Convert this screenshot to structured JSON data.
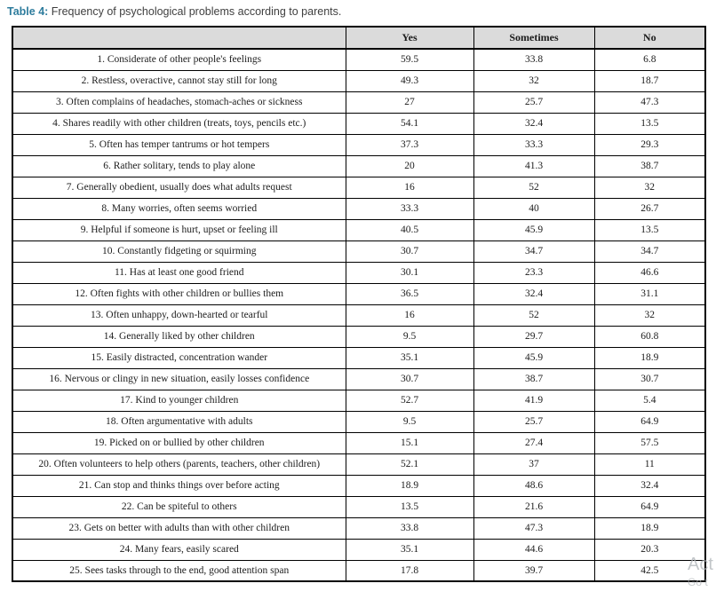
{
  "caption": {
    "label": "Table 4:",
    "text": " Frequency of psychological problems according to parents."
  },
  "table": {
    "headers": [
      "",
      "Yes",
      "Sometimes",
      "No"
    ],
    "rows": [
      {
        "problem": "1. Considerate of other people's feelings",
        "yes": "59.5",
        "sometimes": "33.8",
        "no": "6.8"
      },
      {
        "problem": "2. Restless, overactive, cannot stay still for long",
        "yes": "49.3",
        "sometimes": "32",
        "no": "18.7"
      },
      {
        "problem": "3. Often complains of headaches, stomach-aches or sickness",
        "yes": "27",
        "sometimes": "25.7",
        "no": "47.3"
      },
      {
        "problem": "4. Shares readily with other children (treats, toys, pencils etc.)",
        "yes": "54.1",
        "sometimes": "32.4",
        "no": "13.5"
      },
      {
        "problem": "5. Often has temper tantrums or hot tempers",
        "yes": "37.3",
        "sometimes": "33.3",
        "no": "29.3"
      },
      {
        "problem": "6. Rather solitary, tends to play alone",
        "yes": "20",
        "sometimes": "41.3",
        "no": "38.7"
      },
      {
        "problem": "7. Generally obedient, usually does what adults request",
        "yes": "16",
        "sometimes": "52",
        "no": "32"
      },
      {
        "problem": "8. Many worries, often seems worried",
        "yes": "33.3",
        "sometimes": "40",
        "no": "26.7"
      },
      {
        "problem": "9. Helpful if someone is hurt, upset or feeling ill",
        "yes": "40.5",
        "sometimes": "45.9",
        "no": "13.5"
      },
      {
        "problem": "10. Constantly fidgeting or squirming",
        "yes": "30.7",
        "sometimes": "34.7",
        "no": "34.7"
      },
      {
        "problem": "11. Has at least one good friend",
        "yes": "30.1",
        "sometimes": "23.3",
        "no": "46.6"
      },
      {
        "problem": "12. Often fights with other children or bullies them",
        "yes": "36.5",
        "sometimes": "32.4",
        "no": "31.1"
      },
      {
        "problem": "13. Often unhappy, down-hearted or tearful",
        "yes": "16",
        "sometimes": "52",
        "no": "32"
      },
      {
        "problem": "14. Generally liked by other children",
        "yes": "9.5",
        "sometimes": "29.7",
        "no": "60.8"
      },
      {
        "problem": "15. Easily distracted, concentration wander",
        "yes": "35.1",
        "sometimes": "45.9",
        "no": "18.9"
      },
      {
        "problem": "16. Nervous or clingy in new situation, easily losses confidence",
        "yes": "30.7",
        "sometimes": "38.7",
        "no": "30.7"
      },
      {
        "problem": "17. Kind to younger children",
        "yes": "52.7",
        "sometimes": "41.9",
        "no": "5.4"
      },
      {
        "problem": "18. Often argumentative with adults",
        "yes": "9.5",
        "sometimes": "25.7",
        "no": "64.9"
      },
      {
        "problem": "19. Picked on or bullied by other children",
        "yes": "15.1",
        "sometimes": "27.4",
        "no": "57.5"
      },
      {
        "problem": "20. Often volunteers to help others (parents, teachers, other children)",
        "yes": "52.1",
        "sometimes": "37",
        "no": "11"
      },
      {
        "problem": "21. Can stop and thinks things over before acting",
        "yes": "18.9",
        "sometimes": "48.6",
        "no": "32.4"
      },
      {
        "problem": "22. Can be spiteful to others",
        "yes": "13.5",
        "sometimes": "21.6",
        "no": "64.9"
      },
      {
        "problem": "23. Gets on better with adults than with other children",
        "yes": "33.8",
        "sometimes": "47.3",
        "no": "18.9"
      },
      {
        "problem": "24. Many fears, easily scared",
        "yes": "35.1",
        "sometimes": "44.6",
        "no": "20.3"
      },
      {
        "problem": "25. Sees tasks through to the end, good attention span",
        "yes": "17.8",
        "sometimes": "39.7",
        "no": "42.5"
      }
    ]
  },
  "watermark": {
    "line1": "Act",
    "line2": "Go t"
  },
  "colors": {
    "caption_accent": "#2e7c9d",
    "header_bg": "#dbdbdb",
    "border": "#000000",
    "watermark": "#aeb3b7"
  }
}
